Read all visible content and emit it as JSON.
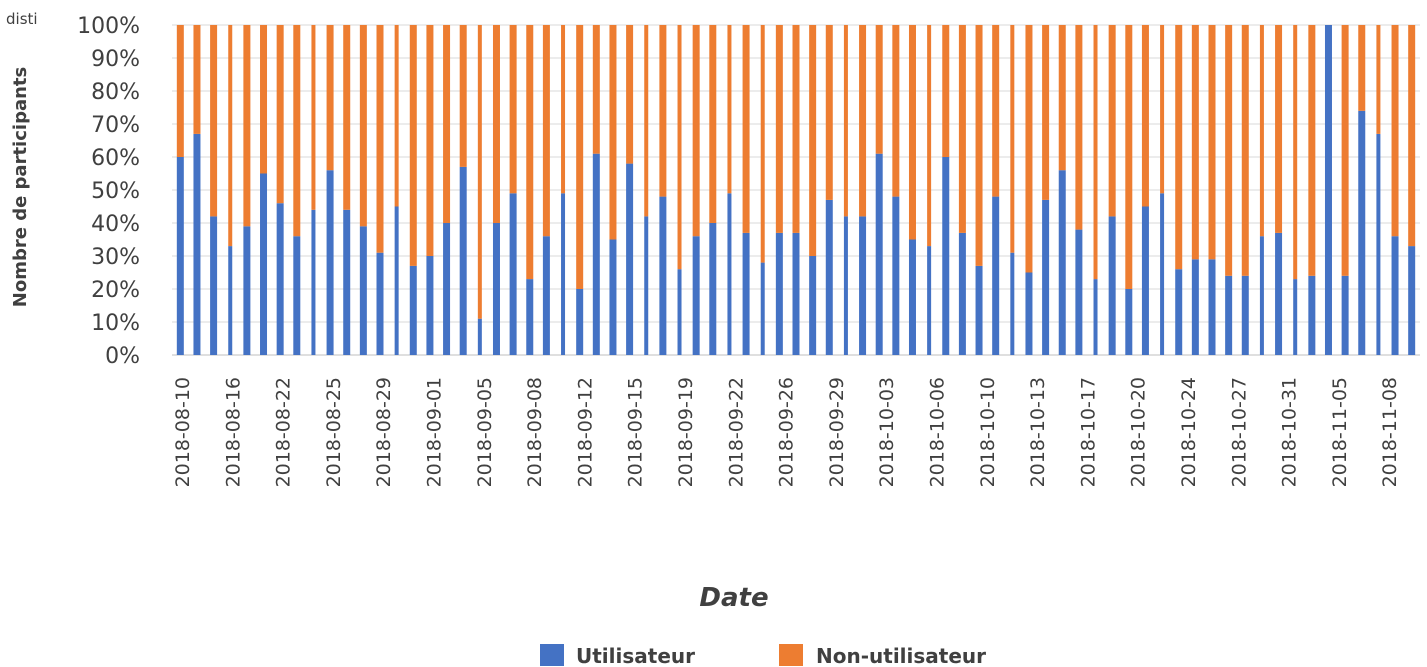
{
  "chart_data": {
    "type": "bar",
    "stacked": true,
    "stack_mode": "percent",
    "xlabel": "Date",
    "ylabel": "Nombre de participants",
    "corner_text": "disti",
    "ylim": [
      0,
      100
    ],
    "yticks": [
      "0%",
      "10%",
      "20%",
      "30%",
      "40%",
      "50%",
      "60%",
      "70%",
      "80%",
      "90%",
      "100%"
    ],
    "x_tick_labels": [
      "2018-08-10",
      "2018-08-16",
      "2018-08-22",
      "2018-08-25",
      "2018-08-29",
      "2018-09-01",
      "2018-09-05",
      "2018-09-08",
      "2018-09-12",
      "2018-09-15",
      "2018-09-19",
      "2018-09-22",
      "2018-09-26",
      "2018-09-29",
      "2018-10-03",
      "2018-10-06",
      "2018-10-10",
      "2018-10-13",
      "2018-10-17",
      "2018-10-20",
      "2018-10-24",
      "2018-10-27",
      "2018-10-31",
      "2018-11-05",
      "2018-11-08"
    ],
    "grid": true,
    "legend_position": "bottom",
    "colors": {
      "Utilisateur": "#4472c4",
      "Non-utilisateur": "#ed7d31"
    },
    "series": [
      {
        "name": "Utilisateur",
        "values": [
          60,
          67,
          42,
          33,
          39,
          55,
          46,
          36,
          44,
          56,
          44,
          39,
          31,
          45,
          27,
          30,
          40,
          57,
          11,
          40,
          49,
          23,
          36,
          49,
          20,
          61,
          35,
          58,
          42,
          48,
          26,
          36,
          40,
          49,
          37,
          28,
          37,
          37,
          30,
          47,
          42,
          42,
          61,
          48,
          35,
          33,
          60,
          37,
          27,
          48,
          31,
          25,
          47,
          56,
          38,
          23,
          42,
          20,
          45,
          49,
          26,
          29,
          29,
          24,
          24,
          36,
          37,
          23,
          24,
          100,
          24,
          74,
          67,
          36,
          33
        ]
      },
      {
        "name": "Non-utilisateur",
        "values": [
          40,
          33,
          58,
          67,
          61,
          45,
          54,
          64,
          56,
          44,
          56,
          61,
          69,
          55,
          73,
          70,
          60,
          43,
          89,
          60,
          51,
          77,
          64,
          51,
          80,
          39,
          65,
          42,
          58,
          52,
          74,
          64,
          60,
          51,
          63,
          72,
          63,
          63,
          70,
          53,
          58,
          58,
          39,
          52,
          65,
          67,
          40,
          63,
          73,
          52,
          69,
          75,
          53,
          44,
          62,
          77,
          58,
          80,
          55,
          51,
          74,
          71,
          71,
          76,
          76,
          64,
          63,
          77,
          76,
          0,
          76,
          26,
          33,
          64,
          67
        ]
      }
    ],
    "bar_widths": [
      "w",
      "w",
      "w",
      "n",
      "w",
      "w",
      "w",
      "w",
      "n",
      "w",
      "w",
      "w",
      "w",
      "n",
      "w",
      "w",
      "w",
      "w",
      "n",
      "w",
      "w",
      "w",
      "w",
      "n",
      "w",
      "w",
      "w",
      "w",
      "n",
      "w",
      "n",
      "w",
      "w",
      "n",
      "w",
      "n",
      "w",
      "w",
      "w",
      "w",
      "n",
      "w",
      "w",
      "w",
      "w",
      "n",
      "w",
      "w",
      "w",
      "w",
      "n",
      "w",
      "w",
      "w",
      "w",
      "n",
      "w",
      "w",
      "w",
      "n",
      "w",
      "w",
      "w",
      "w",
      "w",
      "n",
      "w",
      "n",
      "w",
      "w",
      "w",
      "w",
      "n",
      "w",
      "w"
    ]
  }
}
